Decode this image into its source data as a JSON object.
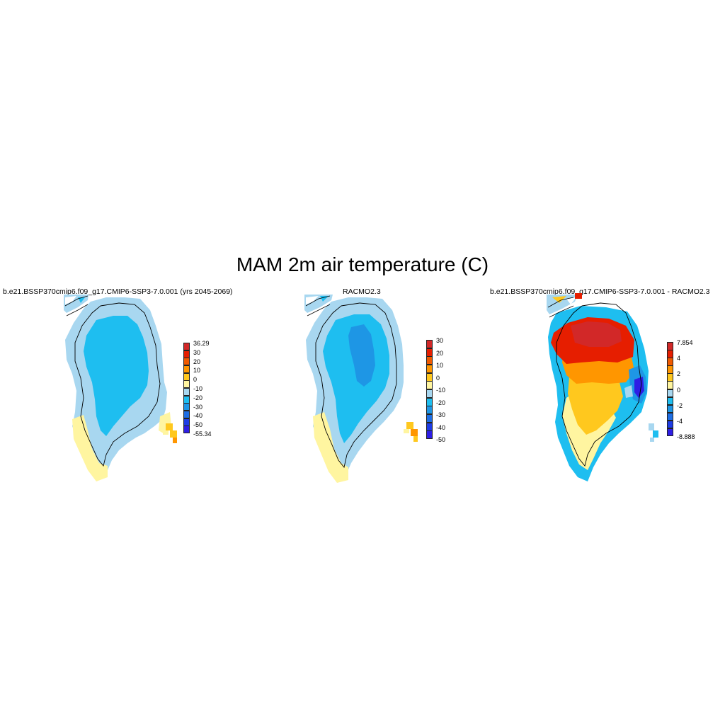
{
  "figure": {
    "title": "MAM 2m air temperature (C)"
  },
  "panels": [
    {
      "title": "b.e21.BSSP370cmip6.f09_g17.CMIP6-SSP3-7.0.001 (yrs 2045-2069)",
      "colorbar": {
        "colors": [
          "#2e1ee5",
          "#1e3ce5",
          "#1e6ee5",
          "#1e96e5",
          "#1ebef0",
          "#a8d7f0",
          "#fff5a0",
          "#ffc81e",
          "#ff9600",
          "#f05a00",
          "#e61e00",
          "#d22828"
        ],
        "labels": [
          "36.29",
          "30",
          "20",
          "10",
          "0",
          "-10",
          "-20",
          "-30",
          "-40",
          "-50",
          "-55.34"
        ]
      }
    },
    {
      "title": "RACMO2.3",
      "colorbar": {
        "colors": [
          "#2e1ee5",
          "#1e3ce5",
          "#1e6ee5",
          "#1e96e5",
          "#1ebef0",
          "#a8d7f0",
          "#fff5a0",
          "#ffc81e",
          "#ff9600",
          "#f05a00",
          "#e61e00",
          "#d22828"
        ],
        "labels": [
          "30",
          "20",
          "10",
          "0",
          "-10",
          "-20",
          "-30",
          "-40",
          "-50"
        ]
      }
    },
    {
      "title": "b.e21.BSSP370cmip6.f09_g17.CMIP6-SSP3-7.0.001 - RACMO2.3",
      "colorbar": {
        "colors": [
          "#2e1ee5",
          "#1e3ce5",
          "#1e6ee5",
          "#1e96e5",
          "#1ebef0",
          "#a8d7f0",
          "#fff5a0",
          "#ffc81e",
          "#ff9600",
          "#f05a00",
          "#e61e00",
          "#d22828"
        ],
        "labels": [
          "7.854",
          "4",
          "2",
          "0",
          "-2",
          "-4",
          "-8.888"
        ]
      }
    }
  ]
}
